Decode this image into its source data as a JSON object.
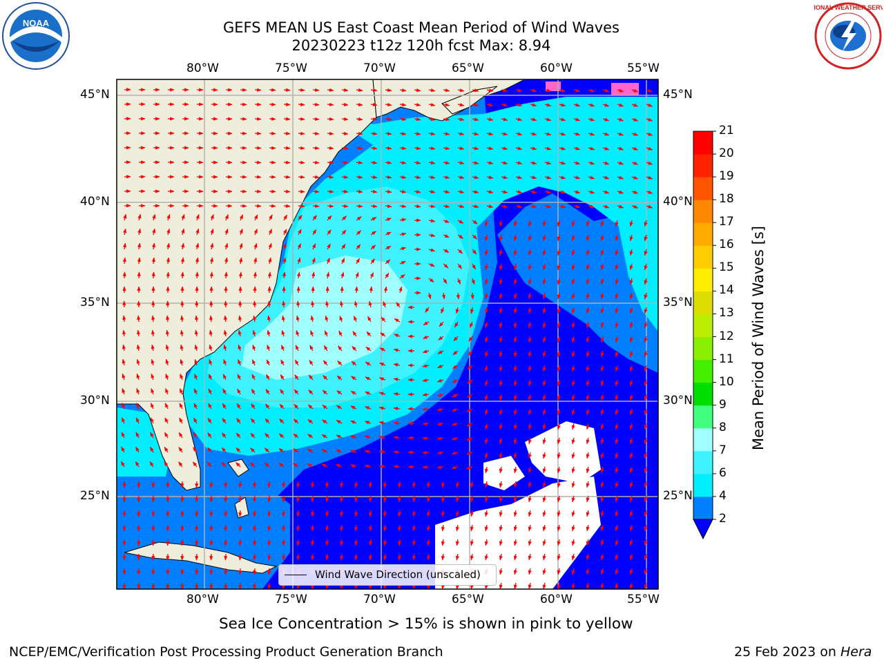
{
  "header": {
    "title_line1": "GEFS MEAN US East Coast Mean Period of Wind Waves",
    "title_line2": "20230223 t12z 120h fcst   Max: 8.94"
  },
  "logos": {
    "left": "NOAA",
    "right": "NATIONAL WEATHER SERVICE"
  },
  "map": {
    "lon_labels": [
      "80°W",
      "75°W",
      "70°W",
      "65°W",
      "60°W",
      "55°W"
    ],
    "lat_labels": [
      "45°N",
      "40°N",
      "35°N",
      "30°N",
      "25°N"
    ],
    "extent": {
      "lon_min": -85,
      "lon_max": -54.5,
      "lat_min": 20.5,
      "lat_max": 46
    },
    "legend_label": "Wind Wave Direction (unscaled)",
    "arrow_color": "#ff0000",
    "land_color": "#efeedc",
    "ice_color": "#ff66cc"
  },
  "colorbar": {
    "label": "Mean Period of Wind Waves [s]",
    "ticks": [
      "2",
      "4",
      "6",
      "7",
      "8",
      "9",
      "10",
      "11",
      "12",
      "13",
      "14",
      "15",
      "16",
      "17",
      "18",
      "19",
      "20",
      "21"
    ],
    "colors": [
      "#0000ff",
      "#0080ff",
      "#00eeff",
      "#3ff2ff",
      "#a0ffff",
      "#42ff80",
      "#00dd00",
      "#44ee00",
      "#88f000",
      "#bbee00",
      "#dddd00",
      "#ffee00",
      "#ffcc00",
      "#ffaa00",
      "#ff8800",
      "#ff5500",
      "#ff2200",
      "#ff0000"
    ]
  },
  "footer": {
    "note": "Sea Ice Concentration > 15% is shown in pink to yellow",
    "left": "NCEP/EMC/Verification Post Processing Product Generation Branch",
    "right_date": "25 Feb 2023 on ",
    "right_machine": "Hera"
  }
}
